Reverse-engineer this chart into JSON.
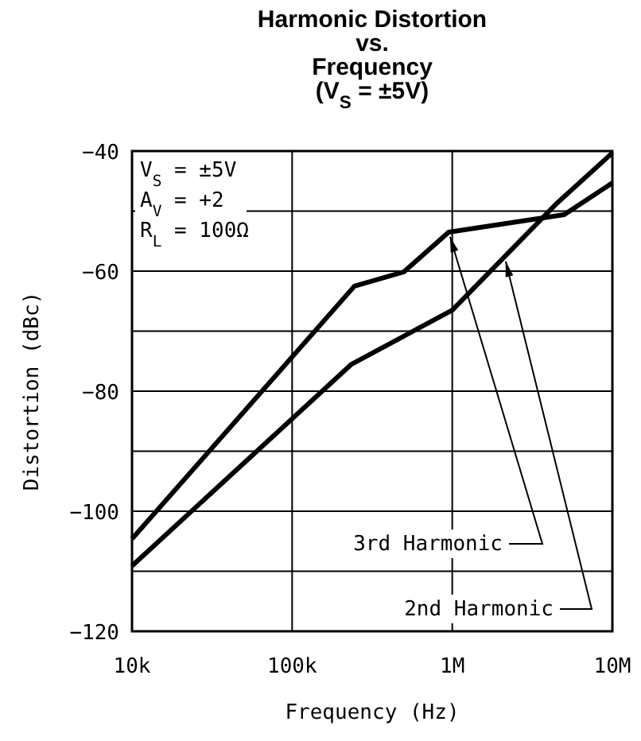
{
  "chart_data": {
    "type": "line",
    "title": "Harmonic Distortion\nvs.\nFrequency\n(V$_{S}$ = ±5V)",
    "xlabel": "Frequency (Hz)",
    "ylabel": "Distortion (dBc)",
    "log": "x",
    "xlim": [
      10000,
      10000000
    ],
    "xticks": [
      {
        "value": 10000,
        "label": "10k"
      },
      {
        "value": 100000,
        "label": "100k"
      },
      {
        "value": 1000000,
        "label": "1M"
      },
      {
        "value": 10000000,
        "label": "10M"
      }
    ],
    "ylim": [
      -120,
      -40
    ],
    "yticks": [
      -120,
      {
        "value": -110,
        "label": null
      },
      -100,
      {
        "value": -90,
        "label": null
      },
      -80,
      {
        "value": -70,
        "label": null
      },
      -60,
      {
        "value": -50,
        "label": null
      },
      -40
    ],
    "grid": true,
    "legend": false,
    "annotations": [
      "V$_{S}$ = ±5V",
      "A$_{V}$ = +2",
      "R$_{L}$ = 100Ω"
    ],
    "series": [
      {
        "name": "3rd Harmonic",
        "color": "#000000",
        "x": [
          10000,
          245000,
          500000,
          950000,
          5000000,
          10000000
        ],
        "values": [
          -104.6,
          -62.5,
          -60.1,
          -53.5,
          -50.6,
          -45.3
        ]
      },
      {
        "name": "2nd Harmonic",
        "color": "#000000",
        "x": [
          10000,
          235000,
          1000000,
          4500000,
          10000000
        ],
        "values": [
          -109.1,
          -75.5,
          -66.5,
          -48.7,
          -40.3
        ]
      }
    ]
  }
}
